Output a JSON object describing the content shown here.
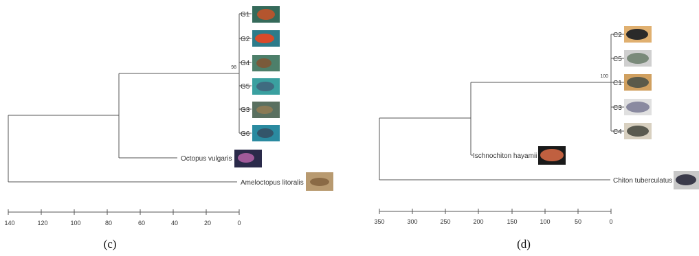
{
  "panels": [
    {
      "id": "c",
      "label": "(c)",
      "support": "98",
      "axis_ticks": [
        140,
        120,
        100,
        80,
        60,
        40,
        20,
        0
      ],
      "taxa": [
        {
          "name": "G1",
          "photo": "orange-octopus-photo",
          "color": "#b4552e",
          "bg": "#356a5a"
        },
        {
          "name": "G2",
          "photo": "red-octopus-photo",
          "color": "#d84a2a",
          "bg": "#2d7b8a"
        },
        {
          "name": "G4",
          "photo": "brown-octopus-photo",
          "color": "#7a5a3a",
          "bg": "#4d7f6a"
        },
        {
          "name": "G5",
          "photo": "blue-octopus-photo",
          "color": "#3f6b80",
          "bg": "#3aa0a0"
        },
        {
          "name": "G3",
          "photo": "sand-octopus-photo",
          "color": "#8a7a55",
          "bg": "#5a7060"
        },
        {
          "name": "G6",
          "photo": "teal-octopus-photo",
          "color": "#33556a",
          "bg": "#2a8aa0"
        },
        {
          "name": "Octopus vulgaris",
          "photo": "octopus-vulgaris-photo",
          "color": "#a05a9a",
          "bg": "#2a2a4a"
        },
        {
          "name": "Ameloctopus litoralis",
          "photo": "ameloctopus-photo",
          "color": "#8a6a45",
          "bg": "#b89a70"
        }
      ]
    },
    {
      "id": "d",
      "label": "(d)",
      "support": "100",
      "axis_ticks": [
        350,
        300,
        250,
        200,
        150,
        100,
        50,
        0
      ],
      "taxa": [
        {
          "name": "C2",
          "photo": "chiton-c2-photo",
          "color": "#2a2a2a",
          "bg": "#e0b070"
        },
        {
          "name": "C5",
          "photo": "chiton-c5-photo",
          "color": "#7a8a7a",
          "bg": "#cfcfcf"
        },
        {
          "name": "C1",
          "photo": "chiton-c1-photo",
          "color": "#5a5a4a",
          "bg": "#d0a060"
        },
        {
          "name": "C3",
          "photo": "chiton-c3-photo",
          "color": "#8a8aa0",
          "bg": "#e0e0e0"
        },
        {
          "name": "C4",
          "photo": "chiton-c4-photo",
          "color": "#5a5a50",
          "bg": "#d8d0c0"
        },
        {
          "name": "Ischnochiton hayamii",
          "photo": "ischnochiton-photo",
          "color": "#c06040",
          "bg": "#1a1a1a"
        },
        {
          "name": "Chiton tuberculatus",
          "photo": "chiton-tuberculatus-photo",
          "color": "#3a3a4a",
          "bg": "#c8c8c8"
        }
      ]
    }
  ]
}
